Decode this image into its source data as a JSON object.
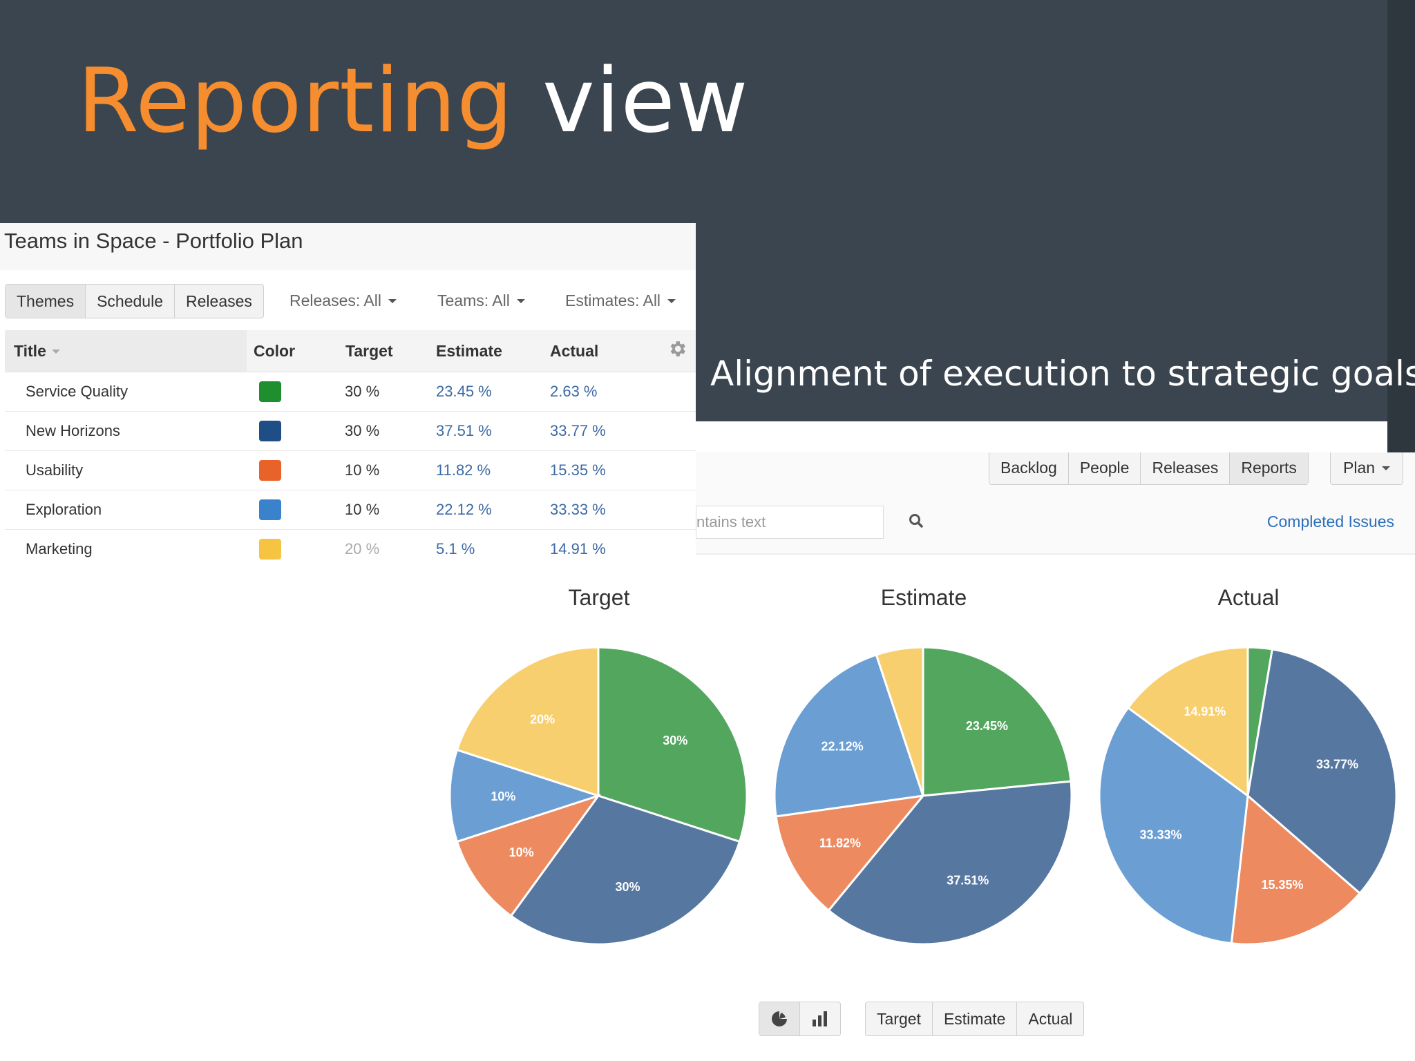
{
  "slide": {
    "title_accent": "Reporting",
    "title_rest": "view",
    "tagline": "Alignment of execution to strategic goals"
  },
  "portfolio": {
    "title": "Teams in Space - Portfolio Plan",
    "tabs": [
      "Themes",
      "Schedule",
      "Releases"
    ],
    "filters": {
      "releases": "Releases: All",
      "teams": "Teams: All",
      "estimates": "Estimates: All"
    },
    "columns": {
      "title": "Title",
      "color": "Color",
      "target": "Target",
      "estimate": "Estimate",
      "actual": "Actual"
    },
    "rows": [
      {
        "title": "Service Quality",
        "color": "#1e8e2e",
        "target": "30 %",
        "estimate": "23.45 %",
        "actual": "2.63 %"
      },
      {
        "title": "New Horizons",
        "color": "#1f4e86",
        "target": "30 %",
        "estimate": "37.51 %",
        "actual": "33.77 %"
      },
      {
        "title": "Usability",
        "color": "#e8632a",
        "target": "10 %",
        "estimate": "11.82 %",
        "actual": "15.35 %"
      },
      {
        "title": "Exploration",
        "color": "#3b82cc",
        "target": "10 %",
        "estimate": "22.12 %",
        "actual": "33.33 %"
      },
      {
        "title": "Marketing",
        "color": "#f6c343",
        "target": "20 %",
        "estimate": "5.1 %",
        "actual": "14.91 %"
      }
    ]
  },
  "toolbar": {
    "nav": [
      "Backlog",
      "People",
      "Releases",
      "Reports"
    ],
    "plan": "Plan",
    "search_value": "ntains text",
    "completed_link": "Completed Issues"
  },
  "chart_toggle": {
    "icons": [
      "pie-chart-icon",
      "bar-chart-icon"
    ],
    "views": [
      "Target",
      "Estimate",
      "Actual"
    ]
  },
  "chart_data": [
    {
      "type": "pie",
      "title": "Target",
      "categories": [
        "Service Quality",
        "New Horizons",
        "Usability",
        "Exploration",
        "Marketing"
      ],
      "values": [
        30,
        30,
        10,
        10,
        20
      ],
      "labels": [
        "30%",
        "30%",
        "10%",
        "10%",
        "20%"
      ],
      "colors": [
        "#52a65e",
        "#56779f",
        "#ee8a5f",
        "#6b9fd4",
        "#f8cf6e"
      ]
    },
    {
      "type": "pie",
      "title": "Estimate",
      "categories": [
        "Service Quality",
        "New Horizons",
        "Usability",
        "Exploration",
        "Marketing"
      ],
      "values": [
        23.45,
        37.51,
        11.82,
        22.12,
        5.1
      ],
      "labels": [
        "23.45%",
        "37.51%",
        "11.82%",
        "22.12%",
        ""
      ],
      "colors": [
        "#52a65e",
        "#56779f",
        "#ee8a5f",
        "#6b9fd4",
        "#f8cf6e"
      ]
    },
    {
      "type": "pie",
      "title": "Actual",
      "categories": [
        "Service Quality",
        "New Horizons",
        "Usability",
        "Exploration",
        "Marketing"
      ],
      "values": [
        2.63,
        33.77,
        15.35,
        33.33,
        14.91
      ],
      "labels": [
        "",
        "33.77%",
        "15.35%",
        "33.33%",
        "14.91%"
      ],
      "colors": [
        "#52a65e",
        "#56779f",
        "#ee8a5f",
        "#6b9fd4",
        "#f8cf6e"
      ]
    }
  ]
}
